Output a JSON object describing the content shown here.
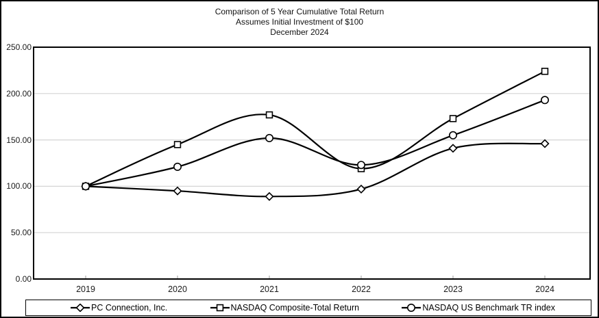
{
  "chart_data": {
    "type": "line",
    "title": "Comparison of 5 Year Cumulative Total Return",
    "subtitle": "Assumes Initial Investment of $100",
    "date_label": "December 2024",
    "categories": [
      "2019",
      "2020",
      "2021",
      "2022",
      "2023",
      "2024"
    ],
    "series": [
      {
        "name": "PC Connection, Inc.",
        "marker": "diamond",
        "values": [
          100,
          95,
          89,
          97,
          141,
          146
        ]
      },
      {
        "name": "NASDAQ Composite-Total Return",
        "marker": "square",
        "values": [
          100,
          145,
          177,
          119,
          173,
          224
        ]
      },
      {
        "name": "NASDAQ US Benchmark TR index",
        "marker": "circle",
        "values": [
          100,
          121,
          152,
          123,
          155,
          193
        ]
      }
    ],
    "y_ticks": [
      "250.00",
      "200.00",
      "150.00",
      "100.00",
      "50.00",
      "0.00"
    ],
    "ylim": [
      0,
      250
    ],
    "y_tick_step": 50,
    "xlabel": "",
    "ylabel": "",
    "grid": true,
    "legend_position": "bottom",
    "colors": {
      "line": "#000000",
      "marker_fill": "#ffffff",
      "gridline": "#d4d4d4",
      "axis_tick": "#aaaaaa",
      "frame": "#000000",
      "background": "#ffffff"
    }
  }
}
